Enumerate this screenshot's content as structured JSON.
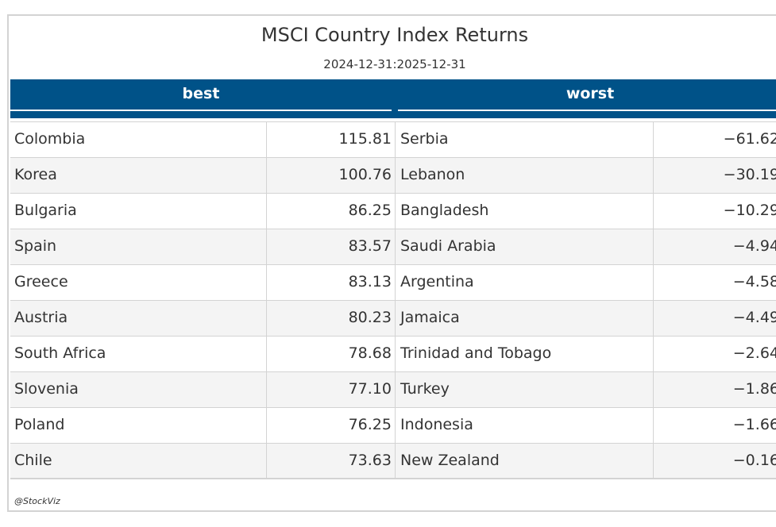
{
  "chart_data": {
    "type": "table",
    "title": "MSCI Country Index Returns",
    "subtitle": "2024-12-31:2025-12-31",
    "columns": [
      "best",
      "worst"
    ],
    "rows": [
      {
        "best_country": "Colombia",
        "best_value": "115.81",
        "worst_country": "Serbia",
        "worst_value": "−61.62"
      },
      {
        "best_country": "Korea",
        "best_value": "100.76",
        "worst_country": "Lebanon",
        "worst_value": "−30.19"
      },
      {
        "best_country": "Bulgaria",
        "best_value": "86.25",
        "worst_country": "Bangladesh",
        "worst_value": "−10.29"
      },
      {
        "best_country": "Spain",
        "best_value": "83.57",
        "worst_country": "Saudi Arabia",
        "worst_value": "−4.94"
      },
      {
        "best_country": "Greece",
        "best_value": "83.13",
        "worst_country": "Argentina",
        "worst_value": "−4.58"
      },
      {
        "best_country": "Austria",
        "best_value": "80.23",
        "worst_country": "Jamaica",
        "worst_value": "−4.49"
      },
      {
        "best_country": "South Africa",
        "best_value": "78.68",
        "worst_country": "Trinidad and Tobago",
        "worst_value": "−2.64"
      },
      {
        "best_country": "Slovenia",
        "best_value": "77.10",
        "worst_country": "Turkey",
        "worst_value": "−1.86"
      },
      {
        "best_country": "Poland",
        "best_value": "76.25",
        "worst_country": "Indonesia",
        "worst_value": "−1.66"
      },
      {
        "best_country": "Chile",
        "best_value": "73.63",
        "worst_country": "New Zealand",
        "worst_value": "−0.16"
      }
    ],
    "source": "@StockViz"
  },
  "colors": {
    "header_bg": "#005288",
    "header_text": "#ffffff",
    "stripe": "#f4f4f4",
    "rule": "#d3d3d3",
    "text": "#333333"
  }
}
